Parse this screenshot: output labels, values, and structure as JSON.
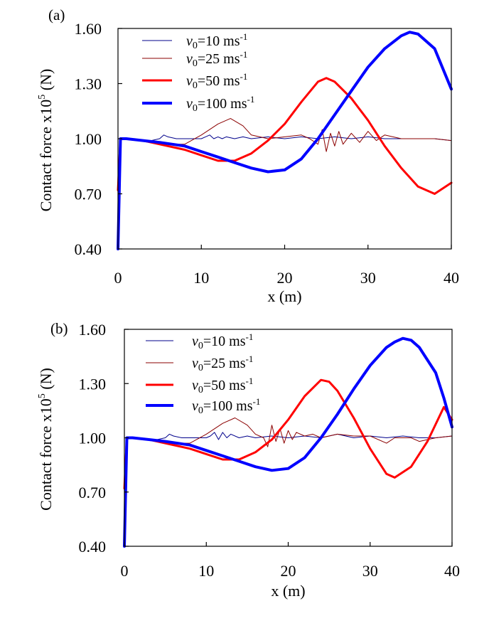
{
  "chart_data": [
    {
      "panel_label": "(a)",
      "type": "line",
      "xlabel": "x (m)",
      "ylabel": "Contact force x10",
      "ylabel_exponent": "5",
      "ylabel_unit": " (N)",
      "xlim": [
        0,
        40
      ],
      "ylim": [
        0.4,
        1.6
      ],
      "xticks": [
        "0",
        "10",
        "20",
        "30",
        "40"
      ],
      "yticks": [
        "0.40",
        "0.70",
        "1.00",
        "1.30",
        "1.60"
      ],
      "grid": false,
      "legend_placement": "top-left",
      "series": [
        {
          "name": "v0=10 ms-1",
          "color": "#00008b",
          "width": 1,
          "points": [
            [
              0,
              0.4
            ],
            [
              0.2,
              0.9
            ],
            [
              0.3,
              1.0
            ],
            [
              1,
              1.0
            ],
            [
              2,
              1.0
            ],
            [
              3,
              0.99
            ],
            [
              4,
              0.99
            ],
            [
              5,
              1.0
            ],
            [
              5.5,
              1.02
            ],
            [
              6,
              1.01
            ],
            [
              7,
              1.0
            ],
            [
              8,
              1.0
            ],
            [
              9,
              1.0
            ],
            [
              10,
              1.0
            ],
            [
              10.5,
              1.01
            ],
            [
              11,
              1.02
            ],
            [
              11.5,
              1.0
            ],
            [
              12,
              1.01
            ],
            [
              12.5,
              1.0
            ],
            [
              13,
              1.01
            ],
            [
              14,
              1.0
            ],
            [
              15,
              1.01
            ],
            [
              16,
              1.0
            ],
            [
              18,
              1.01
            ],
            [
              20,
              1.0
            ],
            [
              22,
              1.01
            ],
            [
              24,
              1.0
            ],
            [
              26,
              1.01
            ],
            [
              28,
              1.0
            ],
            [
              30,
              1.01
            ],
            [
              32,
              1.0
            ],
            [
              34,
              1.0
            ],
            [
              36,
              1.0
            ],
            [
              38,
              1.0
            ],
            [
              40,
              0.99
            ]
          ]
        },
        {
          "name": "v0=25 ms-1",
          "color": "#8b0000",
          "width": 1,
          "points": [
            [
              0,
              0.4
            ],
            [
              0.2,
              0.9
            ],
            [
              0.3,
              1.0
            ],
            [
              1,
              1.0
            ],
            [
              2,
              1.0
            ],
            [
              3,
              0.99
            ],
            [
              4,
              0.98
            ],
            [
              6,
              0.97
            ],
            [
              8,
              0.97
            ],
            [
              10,
              1.02
            ],
            [
              12,
              1.08
            ],
            [
              13.5,
              1.11
            ],
            [
              15,
              1.07
            ],
            [
              16,
              1.02
            ],
            [
              18,
              1.0
            ],
            [
              20,
              1.01
            ],
            [
              22,
              1.02
            ],
            [
              23,
              1.0
            ],
            [
              24,
              0.97
            ],
            [
              24.5,
              1.05
            ],
            [
              25,
              0.93
            ],
            [
              25.5,
              1.03
            ],
            [
              26,
              0.96
            ],
            [
              26.5,
              1.04
            ],
            [
              27,
              0.97
            ],
            [
              28,
              1.03
            ],
            [
              29,
              0.98
            ],
            [
              30,
              1.04
            ],
            [
              31,
              0.99
            ],
            [
              32,
              1.02
            ],
            [
              34,
              1.0
            ],
            [
              36,
              1.0
            ],
            [
              38,
              1.0
            ],
            [
              40,
              0.99
            ]
          ]
        },
        {
          "name": "v0=50 ms-1",
          "color": "#ff0000",
          "width": 3,
          "points": [
            [
              0,
              0.72
            ],
            [
              0.3,
              1.0
            ],
            [
              1,
              1.0
            ],
            [
              3,
              0.99
            ],
            [
              5,
              0.97
            ],
            [
              8,
              0.94
            ],
            [
              10,
              0.91
            ],
            [
              12,
              0.88
            ],
            [
              14,
              0.88
            ],
            [
              16,
              0.92
            ],
            [
              18,
              0.99
            ],
            [
              20,
              1.08
            ],
            [
              22,
              1.2
            ],
            [
              24,
              1.31
            ],
            [
              25,
              1.33
            ],
            [
              26,
              1.31
            ],
            [
              28,
              1.22
            ],
            [
              30,
              1.1
            ],
            [
              32,
              0.96
            ],
            [
              34,
              0.84
            ],
            [
              36,
              0.74
            ],
            [
              38,
              0.7
            ],
            [
              40,
              0.76
            ]
          ]
        },
        {
          "name": "v0=100 ms-1",
          "color": "#0000ff",
          "width": 4,
          "points": [
            [
              0,
              0.4
            ],
            [
              0.2,
              0.8
            ],
            [
              0.3,
              1.0
            ],
            [
              1,
              1.0
            ],
            [
              3,
              0.99
            ],
            [
              5,
              0.98
            ],
            [
              8,
              0.96
            ],
            [
              10,
              0.93
            ],
            [
              12,
              0.9
            ],
            [
              14,
              0.87
            ],
            [
              16,
              0.84
            ],
            [
              18,
              0.82
            ],
            [
              20,
              0.83
            ],
            [
              22,
              0.89
            ],
            [
              24,
              1.0
            ],
            [
              26,
              1.13
            ],
            [
              28,
              1.26
            ],
            [
              30,
              1.39
            ],
            [
              32,
              1.49
            ],
            [
              34,
              1.56
            ],
            [
              35,
              1.58
            ],
            [
              36,
              1.57
            ],
            [
              38,
              1.49
            ],
            [
              40,
              1.27
            ]
          ]
        }
      ]
    },
    {
      "panel_label": "(b)",
      "type": "line",
      "xlabel": "x (m)",
      "ylabel": "Contact force x10",
      "ylabel_exponent": "5",
      "ylabel_unit": " (N)",
      "xlim": [
        0,
        40
      ],
      "ylim": [
        0.4,
        1.6
      ],
      "xticks": [
        "0",
        "10",
        "20",
        "30",
        "40"
      ],
      "yticks": [
        "0.40",
        "0.70",
        "1.00",
        "1.30",
        "1.60"
      ],
      "grid": false,
      "legend_placement": "top-left",
      "series": [
        {
          "name": "v0=10 ms-1",
          "color": "#00008b",
          "width": 1,
          "points": [
            [
              0,
              0.4
            ],
            [
              0.2,
              0.9
            ],
            [
              0.3,
              1.0
            ],
            [
              1,
              1.0
            ],
            [
              2,
              1.0
            ],
            [
              3,
              0.99
            ],
            [
              4,
              0.99
            ],
            [
              5,
              1.0
            ],
            [
              5.5,
              1.02
            ],
            [
              6,
              1.01
            ],
            [
              7,
              1.0
            ],
            [
              8,
              1.0
            ],
            [
              9,
              1.0
            ],
            [
              10,
              1.0
            ],
            [
              10.5,
              1.01
            ],
            [
              11,
              1.03
            ],
            [
              11.5,
              0.99
            ],
            [
              12,
              1.03
            ],
            [
              12.5,
              1.0
            ],
            [
              13,
              1.02
            ],
            [
              14,
              1.0
            ],
            [
              15,
              1.01
            ],
            [
              16,
              1.0
            ],
            [
              18,
              1.01
            ],
            [
              20,
              1.0
            ],
            [
              22,
              1.01
            ],
            [
              24,
              1.0
            ],
            [
              26,
              1.02
            ],
            [
              28,
              1.0
            ],
            [
              30,
              1.01
            ],
            [
              32,
              1.0
            ],
            [
              34,
              1.01
            ],
            [
              36,
              1.0
            ],
            [
              38,
              1.0
            ],
            [
              40,
              1.01
            ]
          ]
        },
        {
          "name": "v0=25 ms-1",
          "color": "#8b0000",
          "width": 1,
          "points": [
            [
              0,
              0.4
            ],
            [
              0.2,
              0.9
            ],
            [
              0.3,
              1.0
            ],
            [
              1,
              1.0
            ],
            [
              2,
              1.0
            ],
            [
              3,
              0.99
            ],
            [
              4,
              0.98
            ],
            [
              6,
              0.97
            ],
            [
              8,
              0.97
            ],
            [
              10,
              1.02
            ],
            [
              12,
              1.08
            ],
            [
              13.5,
              1.11
            ],
            [
              15,
              1.07
            ],
            [
              16,
              1.02
            ],
            [
              17,
              1.0
            ],
            [
              17.5,
              0.95
            ],
            [
              18,
              1.07
            ],
            [
              18.5,
              0.98
            ],
            [
              19,
              1.05
            ],
            [
              19.5,
              0.97
            ],
            [
              20,
              1.04
            ],
            [
              20.5,
              0.99
            ],
            [
              21,
              1.03
            ],
            [
              22,
              1.01
            ],
            [
              23,
              1.02
            ],
            [
              24,
              1.0
            ],
            [
              26,
              1.02
            ],
            [
              28,
              1.01
            ],
            [
              30,
              1.01
            ],
            [
              32,
              0.97
            ],
            [
              33,
              1.0
            ],
            [
              35,
              1.0
            ],
            [
              36,
              0.98
            ],
            [
              38,
              1.0
            ],
            [
              40,
              1.01
            ]
          ]
        },
        {
          "name": "v0=50 ms-1",
          "color": "#ff0000",
          "width": 3,
          "points": [
            [
              0,
              0.72
            ],
            [
              0.3,
              1.0
            ],
            [
              1,
              1.0
            ],
            [
              3,
              0.99
            ],
            [
              5,
              0.97
            ],
            [
              8,
              0.94
            ],
            [
              10,
              0.91
            ],
            [
              12,
              0.88
            ],
            [
              14,
              0.88
            ],
            [
              16,
              0.92
            ],
            [
              18,
              0.99
            ],
            [
              20,
              1.1
            ],
            [
              22,
              1.23
            ],
            [
              24,
              1.32
            ],
            [
              25,
              1.31
            ],
            [
              26,
              1.26
            ],
            [
              28,
              1.11
            ],
            [
              30,
              0.94
            ],
            [
              32,
              0.8
            ],
            [
              33,
              0.78
            ],
            [
              35,
              0.84
            ],
            [
              37,
              0.98
            ],
            [
              39,
              1.17
            ],
            [
              40,
              1.1
            ]
          ]
        },
        {
          "name": "v0=100 ms-1",
          "color": "#0000ff",
          "width": 4,
          "points": [
            [
              0,
              0.4
            ],
            [
              0.2,
              0.8
            ],
            [
              0.3,
              1.0
            ],
            [
              1,
              1.0
            ],
            [
              3,
              0.99
            ],
            [
              5,
              0.98
            ],
            [
              8,
              0.96
            ],
            [
              10,
              0.93
            ],
            [
              12,
              0.9
            ],
            [
              14,
              0.87
            ],
            [
              16,
              0.84
            ],
            [
              18,
              0.82
            ],
            [
              20,
              0.83
            ],
            [
              22,
              0.89
            ],
            [
              24,
              1.0
            ],
            [
              26,
              1.13
            ],
            [
              28,
              1.27
            ],
            [
              30,
              1.4
            ],
            [
              32,
              1.5
            ],
            [
              33,
              1.53
            ],
            [
              34,
              1.55
            ],
            [
              35,
              1.54
            ],
            [
              36,
              1.5
            ],
            [
              38,
              1.36
            ],
            [
              39,
              1.22
            ],
            [
              40,
              1.06
            ]
          ]
        }
      ]
    }
  ]
}
